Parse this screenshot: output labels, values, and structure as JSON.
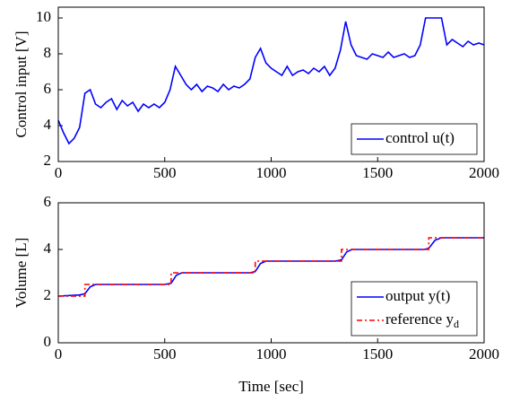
{
  "chart_data": [
    {
      "type": "line",
      "ylabel": "Control input [V]",
      "xlim": [
        0,
        2000
      ],
      "xticks": [
        0,
        500,
        1000,
        1500,
        2000
      ],
      "ylim": [
        2,
        10.6
      ],
      "yticks": [
        2,
        4,
        6,
        8,
        10
      ],
      "grid": false,
      "legend": "lower right",
      "series": [
        {
          "name": "control u(t)",
          "color": "#0000ff",
          "dash": "solid",
          "x": [
            0,
            25,
            50,
            75,
            100,
            125,
            150,
            175,
            200,
            225,
            250,
            275,
            300,
            325,
            350,
            375,
            400,
            425,
            450,
            475,
            500,
            525,
            550,
            575,
            600,
            625,
            650,
            675,
            700,
            725,
            750,
            775,
            800,
            825,
            850,
            875,
            900,
            925,
            950,
            975,
            1000,
            1025,
            1050,
            1075,
            1100,
            1125,
            1150,
            1175,
            1200,
            1225,
            1250,
            1275,
            1300,
            1325,
            1350,
            1375,
            1400,
            1425,
            1450,
            1475,
            1500,
            1525,
            1550,
            1575,
            1600,
            1625,
            1650,
            1675,
            1700,
            1725,
            1750,
            1775,
            1800,
            1825,
            1850,
            1875,
            1900,
            1925,
            1950,
            1975,
            2000
          ],
          "values": [
            4.3,
            3.6,
            3.0,
            3.3,
            3.9,
            5.8,
            6.0,
            5.2,
            5.0,
            5.3,
            5.5,
            4.9,
            5.4,
            5.1,
            5.3,
            4.8,
            5.2,
            5.0,
            5.2,
            5.0,
            5.3,
            6.0,
            7.3,
            6.8,
            6.3,
            6.0,
            6.3,
            5.9,
            6.2,
            6.1,
            5.9,
            6.3,
            6.0,
            6.2,
            6.1,
            6.3,
            6.6,
            7.8,
            8.3,
            7.5,
            7.2,
            7.0,
            6.8,
            7.3,
            6.8,
            7.0,
            7.1,
            6.9,
            7.2,
            7.0,
            7.3,
            6.8,
            7.2,
            8.2,
            9.8,
            8.5,
            7.9,
            7.8,
            7.7,
            8.0,
            7.9,
            7.8,
            8.1,
            7.8,
            7.9,
            8.0,
            7.8,
            7.9,
            8.5,
            10,
            10,
            10,
            10,
            8.5,
            8.8,
            8.6,
            8.4,
            8.7,
            8.5,
            8.6,
            8.5
          ]
        }
      ]
    },
    {
      "type": "line",
      "ylabel": "Volume [L]",
      "xlabel": "Time [sec]",
      "xlim": [
        0,
        2000
      ],
      "xticks": [
        0,
        500,
        1000,
        1500,
        2000
      ],
      "ylim": [
        0,
        6
      ],
      "yticks": [
        0,
        2,
        4,
        6
      ],
      "grid": false,
      "legend": "lower right",
      "series": [
        {
          "name": "output y(t)",
          "color": "#0000ff",
          "dash": "solid",
          "x": [
            0,
            100,
            125,
            150,
            175,
            500,
            530,
            555,
            580,
            900,
            925,
            950,
            975,
            1300,
            1330,
            1355,
            1380,
            1720,
            1740,
            1770,
            1800,
            2000
          ],
          "values": [
            2,
            2.05,
            2.1,
            2.4,
            2.5,
            2.5,
            2.55,
            2.9,
            3,
            3,
            3.05,
            3.4,
            3.5,
            3.5,
            3.55,
            3.9,
            4,
            4,
            4.05,
            4.4,
            4.5,
            4.5
          ]
        },
        {
          "name": "reference y_d",
          "color": "#ff0000",
          "dash": "dashdot",
          "x": [
            0,
            125,
            125,
            530,
            530,
            925,
            925,
            1330,
            1330,
            1740,
            1740,
            2000
          ],
          "values": [
            2,
            2,
            2.5,
            2.5,
            3,
            3,
            3.5,
            3.5,
            4,
            4,
            4.5,
            4.5
          ]
        }
      ]
    }
  ]
}
